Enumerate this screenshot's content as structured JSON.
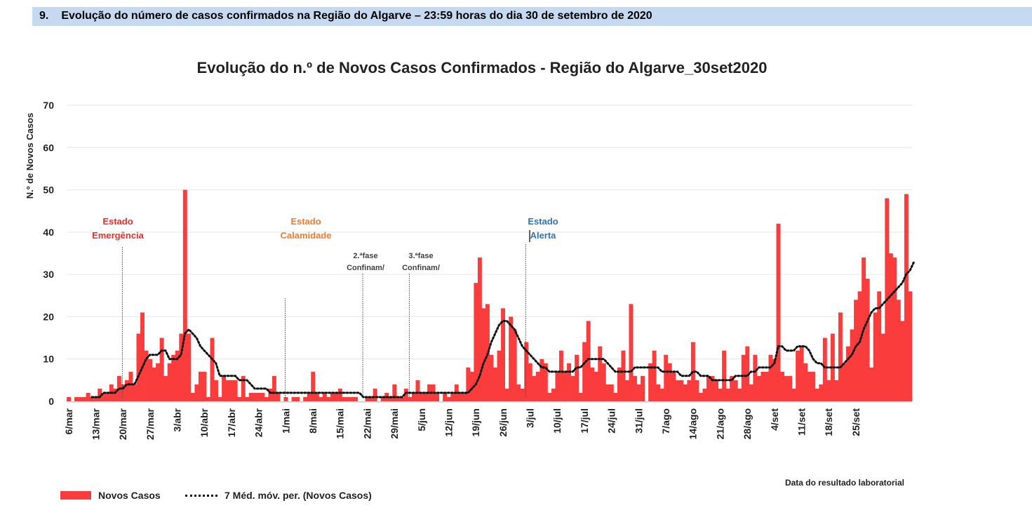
{
  "header": {
    "number": "9.",
    "title": "Evolução do número de casos confirmados na Região do Algarve – 23:59 horas do dia 30 de setembro de 2020"
  },
  "chart_data": {
    "type": "bar",
    "title": "Evolução do n.º de Novos Casos Confirmados - Região do Algarve_30set2020",
    "ylabel": "N.º de Novos Casos",
    "xlabel": "Data do resultado laboratorial",
    "ylim": [
      0,
      70
    ],
    "yticks": [
      0,
      10,
      20,
      30,
      40,
      50,
      60,
      70
    ],
    "grid": "horizontal",
    "legend_position": "bottom-left",
    "start_date": "6/mar",
    "end_date": "30/set",
    "xtick_labels": [
      "6/mar",
      "13/mar",
      "20/mar",
      "27/mar",
      "3/abr",
      "10/abr",
      "17/abr",
      "24/abr",
      "1/mai",
      "8/mai",
      "15/mai",
      "22/mai",
      "29/mai",
      "5/jun",
      "12/jun",
      "19/jun",
      "26/jun",
      "3/jul",
      "10/jul",
      "17/jul",
      "24/jul",
      "31/jul",
      "7/ago",
      "14/ago",
      "21/ago",
      "28/ago",
      "4/set",
      "11/set",
      "18/set",
      "25/set"
    ],
    "colors": {
      "bars": "#fa3c3c",
      "moving_average": "#111111"
    },
    "series": [
      {
        "name": "Novos Casos",
        "type": "bar",
        "values": [
          1,
          0,
          1,
          1,
          1,
          2,
          1,
          1,
          3,
          2,
          2,
          4,
          3,
          6,
          4,
          5,
          7,
          4,
          16,
          21,
          12,
          10,
          8,
          9,
          15,
          6,
          9,
          11,
          12,
          16,
          50,
          16,
          2,
          4,
          7,
          7,
          1,
          15,
          5,
          1,
          6,
          5,
          5,
          5,
          1,
          6,
          1,
          2,
          2,
          2,
          2,
          1,
          3,
          6,
          2,
          0,
          1,
          0,
          1,
          1,
          0,
          1,
          2,
          7,
          2,
          1,
          2,
          1,
          2,
          2,
          3,
          1,
          1,
          1,
          1,
          0,
          0,
          1,
          1,
          3,
          0,
          1,
          2,
          1,
          4,
          1,
          1,
          3,
          1,
          2,
          5,
          2,
          2,
          4,
          4,
          2,
          0,
          2,
          1,
          2,
          4,
          2,
          2,
          8,
          7,
          28,
          34,
          22,
          23,
          11,
          8,
          12,
          22,
          3,
          20,
          17,
          4,
          3,
          14,
          9,
          6,
          7,
          10,
          9,
          2,
          3,
          7,
          12,
          7,
          9,
          6,
          11,
          2,
          14,
          19,
          8,
          7,
          13,
          9,
          4,
          4,
          2,
          8,
          12,
          5,
          23,
          6,
          4,
          6,
          0,
          9,
          12,
          4,
          3,
          11,
          9,
          7,
          5,
          5,
          4,
          5,
          14,
          5,
          2,
          3,
          6,
          6,
          5,
          3,
          12,
          3,
          6,
          5,
          3,
          11,
          13,
          4,
          11,
          6,
          7,
          7,
          11,
          10,
          42,
          7,
          6,
          6,
          3,
          12,
          13,
          9,
          7,
          7,
          3,
          4,
          15,
          5,
          16,
          5,
          21,
          9,
          13,
          17,
          24,
          26,
          34,
          29,
          8,
          21,
          26,
          16,
          48,
          35,
          34,
          24,
          19,
          49,
          26
        ]
      },
      {
        "name": "7 Méd. móv. per. (Novos Casos)",
        "type": "line",
        "style": "dotted",
        "values": [
          null,
          null,
          null,
          null,
          null,
          null,
          1,
          1,
          1,
          2,
          2,
          2,
          2,
          3,
          3,
          4,
          4,
          4,
          6,
          8,
          10,
          11,
          11,
          11,
          12,
          12,
          10,
          10,
          10,
          11,
          16,
          17,
          16,
          15,
          13,
          12,
          11,
          10,
          9,
          6,
          6,
          6,
          6,
          6,
          5,
          5,
          5,
          4,
          3,
          3,
          3,
          3,
          2,
          2,
          2,
          2,
          2,
          2,
          2,
          2,
          2,
          2,
          2,
          2,
          2,
          2,
          2,
          2,
          2,
          2,
          2,
          2,
          2,
          2,
          2,
          2,
          1,
          1,
          1,
          1,
          1,
          1,
          1,
          1,
          1,
          1,
          1,
          2,
          2,
          2,
          2,
          2,
          2,
          2,
          2,
          2,
          2,
          2,
          2,
          2,
          2,
          2,
          2,
          2,
          3,
          4,
          6,
          9,
          11,
          14,
          16,
          18,
          19,
          19,
          18,
          17,
          15,
          13,
          12,
          11,
          10,
          9,
          8,
          8,
          7,
          7,
          7,
          7,
          7,
          7,
          7,
          8,
          8,
          9,
          10,
          10,
          10,
          10,
          10,
          9,
          8,
          7,
          7,
          7,
          7,
          7,
          8,
          8,
          8,
          8,
          8,
          8,
          8,
          7,
          7,
          7,
          7,
          7,
          6,
          6,
          6,
          7,
          7,
          6,
          6,
          6,
          5,
          5,
          5,
          5,
          5,
          5,
          6,
          6,
          6,
          6,
          7,
          7,
          8,
          8,
          8,
          8,
          9,
          13,
          13,
          12,
          12,
          12,
          13,
          13,
          13,
          12,
          10,
          9,
          9,
          8,
          8,
          8,
          8,
          8,
          9,
          10,
          11,
          13,
          14,
          17,
          19,
          21,
          22,
          22,
          23,
          24,
          25,
          26,
          27,
          28,
          30,
          31,
          33
        ]
      }
    ],
    "annotations": [
      {
        "text": [
          "Estado",
          "Emergência"
        ],
        "color": "#e8302a"
      },
      {
        "text": [
          "Estado",
          "Calamidade"
        ],
        "color": "#ee7d31"
      },
      {
        "text": [
          "2.ªfase",
          "Confinam/"
        ],
        "color": "#404040"
      },
      {
        "text": [
          "3.ªfase",
          "Confinam/"
        ],
        "color": "#404040"
      },
      {
        "text": [
          "Estado",
          "Alerta"
        ],
        "color": "#2e75b6"
      }
    ]
  },
  "legend": {
    "bars_label": "Novos Casos",
    "line_label": "7 Méd. móv. per. (Novos Casos)"
  }
}
